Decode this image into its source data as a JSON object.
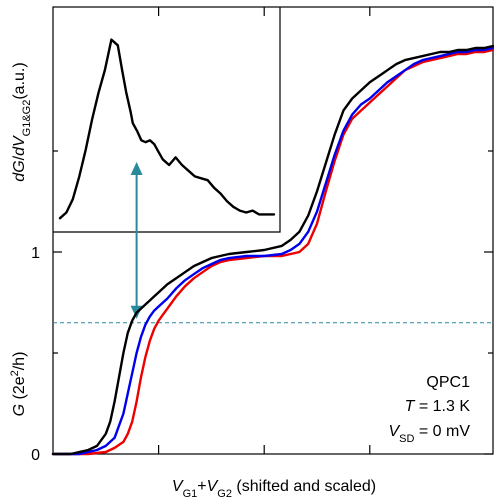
{
  "chart_data": [
    {
      "type": "line",
      "name": "main",
      "xlabel": {
        "main": "V",
        "sub1": "G1",
        "plus": "+",
        "main2": "V",
        "sub2": "G2",
        "rest": " (shifted and scaled)"
      },
      "ylabel": {
        "italic": "G",
        "rest": " (2e",
        "sup": "2",
        "end": "/h)"
      },
      "xlim": [
        0,
        100
      ],
      "ylim": [
        0,
        2
      ],
      "yticks": [
        {
          "value": 0,
          "label": "0"
        },
        {
          "value": 1,
          "label": "1"
        }
      ],
      "minor_yticks": [
        0.5,
        1.5
      ],
      "xticks": [
        24,
        48,
        72
      ],
      "annotation": {
        "line1": "QPC1",
        "line2_italic": "T",
        "line2_rest": " = 1.3 K",
        "line3_italic": "V",
        "line3_sub": "SD",
        "line3_rest": " = 0 mV"
      },
      "reference_line": {
        "y": 0.65,
        "color": "#2a8a9a"
      },
      "arrow": {
        "x": 19,
        "y_from": 0.65,
        "color": "#2a8a9a"
      },
      "series": [
        {
          "color": "#000000",
          "x": [
            0,
            4,
            8,
            10,
            12,
            13,
            14,
            15,
            16,
            17,
            18,
            19,
            20,
            21,
            22,
            23,
            24,
            26,
            28,
            30,
            32,
            34,
            36,
            38,
            40,
            44,
            48,
            52,
            54,
            56,
            58,
            60,
            62,
            64,
            66,
            68,
            70,
            72,
            74,
            76,
            78,
            80,
            82,
            84,
            86,
            88,
            90,
            92,
            94,
            96,
            98,
            100
          ],
          "y": [
            0,
            0,
            0.02,
            0.04,
            0.1,
            0.16,
            0.26,
            0.38,
            0.5,
            0.6,
            0.66,
            0.7,
            0.72,
            0.74,
            0.76,
            0.78,
            0.8,
            0.84,
            0.87,
            0.9,
            0.93,
            0.95,
            0.97,
            0.98,
            0.99,
            1.0,
            1.01,
            1.03,
            1.06,
            1.1,
            1.18,
            1.3,
            1.44,
            1.58,
            1.7,
            1.76,
            1.8,
            1.84,
            1.87,
            1.9,
            1.93,
            1.95,
            1.96,
            1.97,
            1.98,
            1.99,
            1.99,
            2.0,
            2.0,
            2.01,
            2.01,
            2.02
          ]
        },
        {
          "color": "#0000ee",
          "x": [
            0,
            6,
            10,
            12,
            14,
            15,
            16,
            17,
            18,
            19,
            20,
            21,
            22,
            23,
            24,
            25,
            26,
            28,
            30,
            32,
            34,
            36,
            38,
            40,
            44,
            48,
            52,
            54,
            56,
            58,
            60,
            62,
            64,
            66,
            68,
            70,
            72,
            74,
            76,
            78,
            80,
            82,
            84,
            86,
            88,
            90,
            92,
            94,
            96,
            98,
            100
          ],
          "y": [
            0,
            0,
            0.02,
            0.04,
            0.08,
            0.14,
            0.2,
            0.3,
            0.4,
            0.5,
            0.58,
            0.64,
            0.68,
            0.71,
            0.73,
            0.75,
            0.77,
            0.82,
            0.86,
            0.89,
            0.92,
            0.94,
            0.96,
            0.97,
            0.98,
            0.98,
            0.99,
            1.01,
            1.04,
            1.1,
            1.2,
            1.34,
            1.48,
            1.6,
            1.68,
            1.73,
            1.76,
            1.8,
            1.84,
            1.87,
            1.9,
            1.93,
            1.95,
            1.96,
            1.97,
            1.98,
            1.99,
            1.99,
            2.0,
            2.0,
            2.01
          ]
        },
        {
          "color": "#ee0000",
          "x": [
            0,
            8,
            12,
            14,
            16,
            17,
            18,
            19,
            20,
            21,
            22,
            23,
            24,
            25,
            26,
            27,
            28,
            30,
            32,
            34,
            36,
            38,
            40,
            44,
            48,
            52,
            54,
            56,
            58,
            60,
            62,
            64,
            66,
            68,
            70,
            72,
            74,
            76,
            78,
            80,
            82,
            84,
            86,
            88,
            90,
            92,
            94,
            96,
            98,
            100
          ],
          "y": [
            0,
            0,
            0.01,
            0.03,
            0.06,
            0.1,
            0.16,
            0.26,
            0.38,
            0.48,
            0.56,
            0.62,
            0.66,
            0.69,
            0.72,
            0.75,
            0.78,
            0.83,
            0.87,
            0.9,
            0.93,
            0.95,
            0.96,
            0.97,
            0.98,
            0.98,
            0.99,
            1.0,
            1.04,
            1.14,
            1.3,
            1.45,
            1.58,
            1.66,
            1.7,
            1.74,
            1.78,
            1.82,
            1.86,
            1.9,
            1.92,
            1.94,
            1.95,
            1.96,
            1.97,
            1.98,
            1.98,
            1.99,
            1.99,
            2.0
          ]
        }
      ]
    },
    {
      "type": "line",
      "name": "inset",
      "ylabel": {
        "i1": "dG",
        "s1": "/",
        "i2": "dV",
        "sub": "G1&G2",
        "rest": "(a.u.)"
      },
      "xlim": [
        0,
        100
      ],
      "ylim": [
        0,
        1
      ],
      "series": [
        {
          "color": "#000000",
          "x": [
            0,
            3,
            6,
            9,
            12,
            15,
            18,
            21,
            24,
            27,
            29,
            31,
            33,
            34,
            36,
            38,
            40,
            42,
            44,
            46,
            48,
            51,
            54,
            57,
            60,
            63,
            66,
            69,
            72,
            75,
            78,
            81,
            84,
            87,
            90,
            93,
            96,
            100
          ],
          "y": [
            0.02,
            0.05,
            0.12,
            0.24,
            0.38,
            0.54,
            0.68,
            0.8,
            0.96,
            0.93,
            0.8,
            0.68,
            0.58,
            0.52,
            0.48,
            0.43,
            0.42,
            0.43,
            0.41,
            0.37,
            0.33,
            0.3,
            0.34,
            0.3,
            0.27,
            0.24,
            0.23,
            0.22,
            0.18,
            0.15,
            0.11,
            0.08,
            0.06,
            0.05,
            0.06,
            0.04,
            0.04,
            0.04
          ]
        }
      ]
    }
  ]
}
